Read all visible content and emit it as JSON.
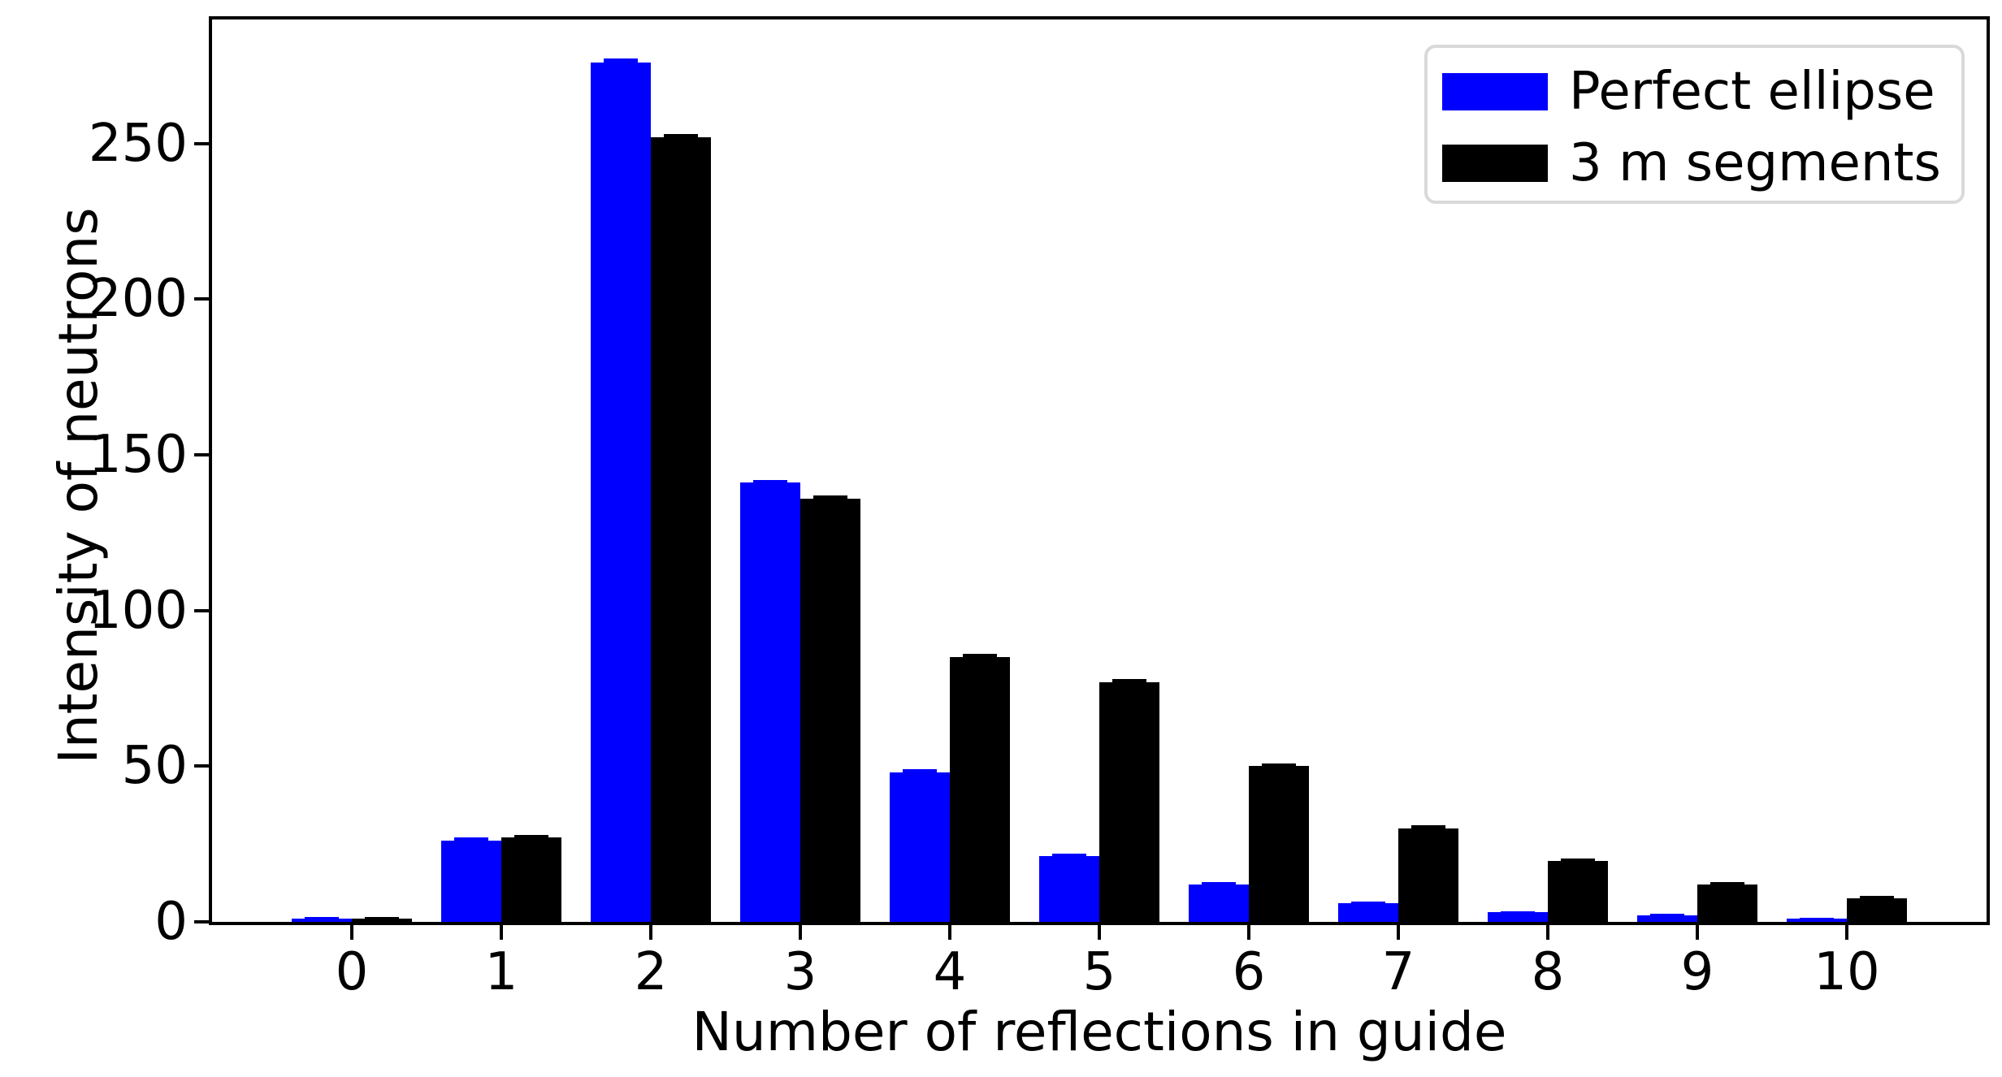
{
  "chart_data": {
    "type": "bar",
    "title": "",
    "xlabel": "Number of reflections in guide",
    "ylabel": "Intensity of neutrons",
    "categories": [
      "0",
      "1",
      "2",
      "3",
      "4",
      "5",
      "6",
      "7",
      "8",
      "9",
      "10"
    ],
    "series": [
      {
        "name": "Perfect ellipse",
        "color": "#0000ff",
        "values": [
          1,
          26,
          276,
          141,
          48,
          21,
          12,
          6,
          3,
          2,
          1
        ],
        "errors": [
          0.5,
          1,
          1.2,
          1,
          1,
          0.8,
          0.7,
          0.6,
          0.5,
          0.5,
          0.4
        ]
      },
      {
        "name": "3 m segments",
        "color": "#000000",
        "values": [
          1,
          27,
          252,
          136,
          85,
          77,
          50,
          30,
          19.5,
          12,
          7.5
        ],
        "errors": [
          0.5,
          1,
          1,
          1,
          1,
          1,
          0.9,
          1,
          0.9,
          0.8,
          0.9
        ]
      }
    ],
    "yticks": [
      0,
      50,
      100,
      150,
      200,
      250
    ],
    "ylim": [
      0,
      290
    ],
    "grid": false,
    "legend_position": "upper right",
    "error_bars": "caps on top of bars, same color as series",
    "background_color": "#ffffff",
    "axis_color": "#000000"
  }
}
